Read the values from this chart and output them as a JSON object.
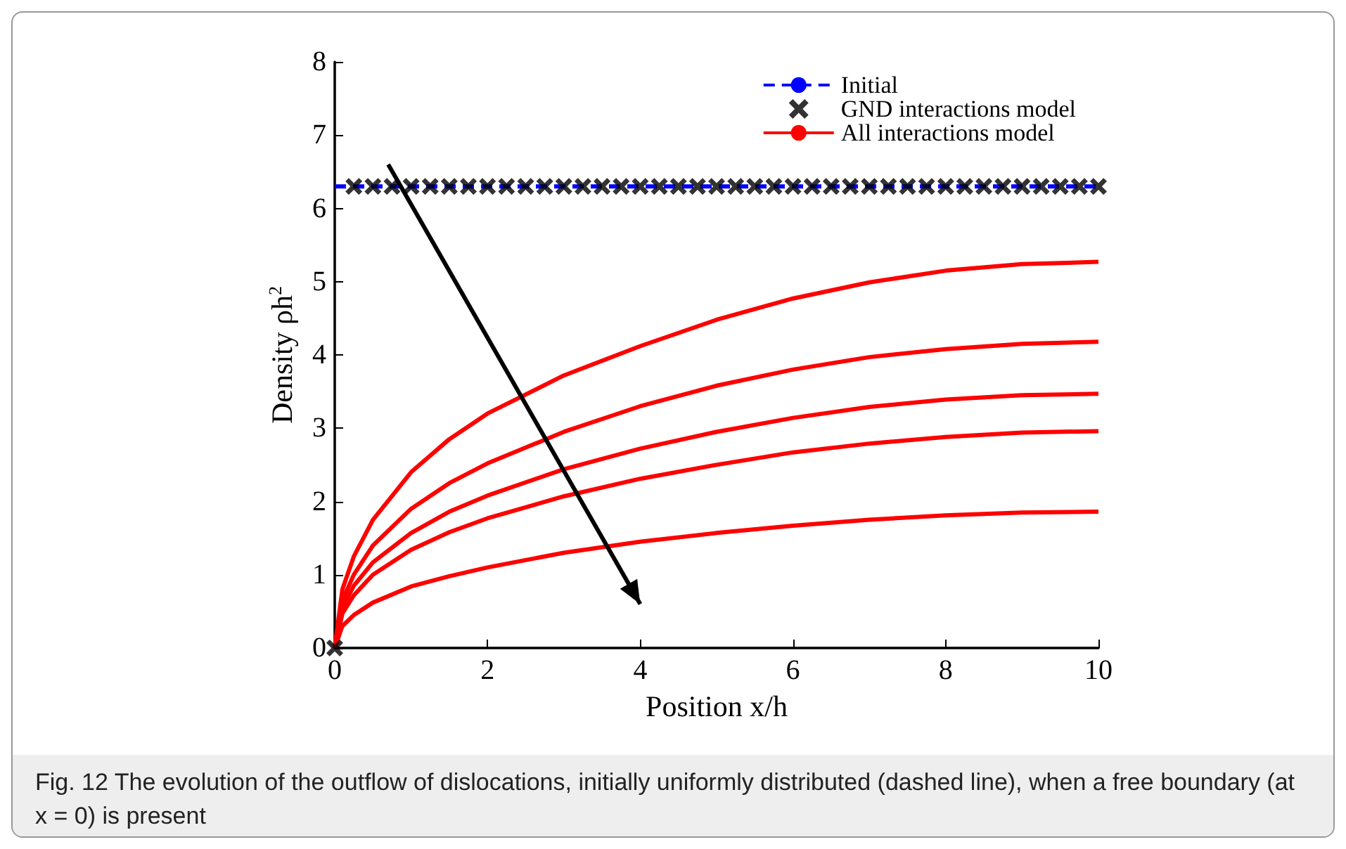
{
  "chart_data": {
    "type": "line",
    "xlabel": "Position x/h",
    "ylabel": "Density ρh$^{2}$",
    "annotations": [
      "Fig. 12 The evolution of the outflow of dislocations, initially uniformly distributed (dashed line), when a free boundary (at x = 0) is present"
    ],
    "xlim": [
      0,
      10
    ],
    "xticks": [
      0,
      2,
      4,
      6,
      8,
      10
    ],
    "ylim": [
      0,
      8
    ],
    "yticks": [
      0,
      1,
      2,
      3,
      4,
      5,
      6,
      7,
      8
    ],
    "grid": false,
    "legend": "top right",
    "series": [
      {
        "name": "Initial",
        "color": "#0000ff",
        "line_style": "dashed",
        "marker": "none",
        "x": [
          0,
          10
        ],
        "values": [
          6.3,
          6.3
        ]
      },
      {
        "name": "GND interactions model",
        "type": "scatter",
        "color": "#000000",
        "marker": "cross",
        "x": [
          0,
          0.25,
          0.5,
          0.75,
          1,
          1.25,
          1.5,
          1.75,
          2,
          2.25,
          2.5,
          2.75,
          3,
          3.25,
          3.5,
          3.75,
          4,
          4.25,
          4.5,
          4.75,
          5,
          5.25,
          5.5,
          5.75,
          6,
          6.25,
          6.5,
          6.75,
          7,
          7.25,
          7.5,
          7.75,
          8,
          8.25,
          8.5,
          8.75,
          9,
          9.25,
          9.5,
          9.75,
          10
        ],
        "values": [
          0,
          6.3,
          6.3,
          6.3,
          6.3,
          6.3,
          6.3,
          6.3,
          6.3,
          6.3,
          6.3,
          6.3,
          6.3,
          6.3,
          6.3,
          6.3,
          6.3,
          6.3,
          6.3,
          6.3,
          6.3,
          6.3,
          6.3,
          6.3,
          6.3,
          6.3,
          6.3,
          6.3,
          6.3,
          6.3,
          6.3,
          6.3,
          6.3,
          6.3,
          6.3,
          6.3,
          6.3,
          6.3,
          6.3,
          6.3,
          6.3
        ]
      },
      {
        "name": "All interactions model",
        "color": "#ff0000",
        "line_style": "solid",
        "marker": "none",
        "x": [
          0,
          0.1,
          0.25,
          0.5,
          1,
          1.5,
          2,
          3,
          4,
          5,
          6,
          7,
          8,
          9,
          10
        ],
        "values": [
          0,
          0.8,
          1.25,
          1.75,
          2.4,
          2.85,
          3.2,
          3.72,
          4.12,
          4.48,
          4.77,
          4.99,
          5.15,
          5.24,
          5.27
        ]
      },
      {
        "color": "#ff0000",
        "line_style": "solid",
        "marker": "none",
        "x": [
          0,
          0.1,
          0.25,
          0.5,
          1,
          1.5,
          2,
          3,
          4,
          5,
          6,
          7,
          8,
          9,
          10
        ],
        "values": [
          0,
          0.65,
          1.0,
          1.4,
          1.9,
          2.25,
          2.52,
          2.95,
          3.3,
          3.58,
          3.8,
          3.97,
          4.08,
          4.15,
          4.18
        ]
      },
      {
        "color": "#ff0000",
        "line_style": "solid",
        "marker": "none",
        "x": [
          0,
          0.1,
          0.25,
          0.5,
          1,
          1.5,
          2,
          3,
          4,
          5,
          6,
          7,
          8,
          9,
          10
        ],
        "values": [
          0,
          0.55,
          0.85,
          1.17,
          1.57,
          1.86,
          2.08,
          2.44,
          2.72,
          2.95,
          3.14,
          3.29,
          3.39,
          3.45,
          3.47
        ]
      },
      {
        "color": "#ff0000",
        "line_style": "solid",
        "marker": "none",
        "x": [
          0,
          0.1,
          0.25,
          0.5,
          1,
          1.5,
          2,
          3,
          4,
          5,
          6,
          7,
          8,
          9,
          10
        ],
        "values": [
          0,
          0.47,
          0.72,
          1.0,
          1.34,
          1.58,
          1.77,
          2.07,
          2.31,
          2.5,
          2.67,
          2.79,
          2.88,
          2.94,
          2.96
        ]
      },
      {
        "color": "#ff0000",
        "line_style": "solid",
        "marker": "none",
        "x": [
          0,
          0.1,
          0.25,
          0.5,
          1,
          1.5,
          2,
          3,
          4,
          5,
          6,
          7,
          8,
          9,
          10
        ],
        "values": [
          0,
          0.3,
          0.45,
          0.62,
          0.84,
          0.98,
          1.1,
          1.3,
          1.45,
          1.57,
          1.67,
          1.75,
          1.81,
          1.85,
          1.86
        ]
      }
    ]
  }
}
